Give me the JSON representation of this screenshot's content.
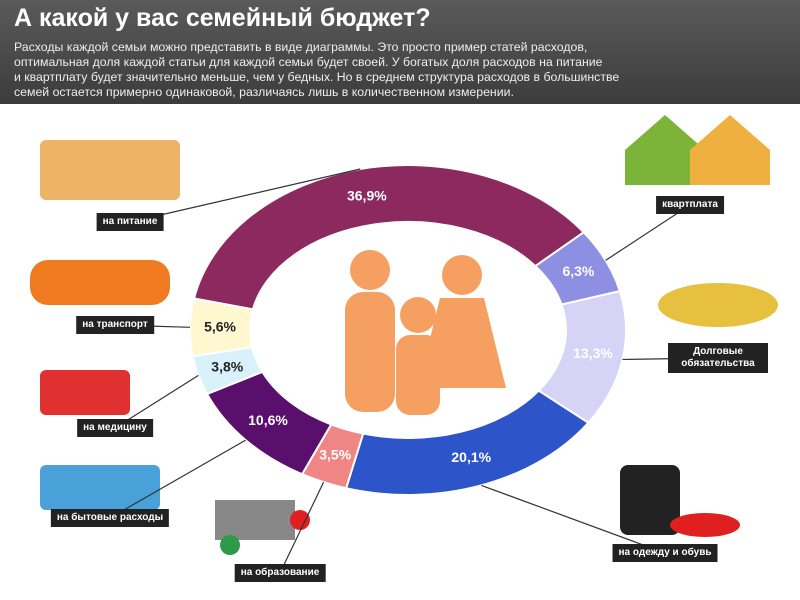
{
  "header": {
    "title": "А какой у вас семейный бюджет?",
    "description": [
      "Расходы каждой семьи можно представить в виде диаграммы. Это просто пример статей расходов,",
      "оптимальная доля каждой статьи для каждой семьи будет своей. У богатых доля расходов на питание",
      "и квартплату будет значительно меньше, чем у бедных. Но в среднем структура расходов в большинстве",
      "семей остается примерно одинаковой, различаясь лишь в количественном измерении."
    ]
  },
  "chart_data": {
    "type": "donut",
    "categories": [
      "на питание",
      "квартплата",
      "Долговые обязательства",
      "на одежду и обувь",
      "на образование",
      "на бытовые расходы",
      "на медицину",
      "на транспорт"
    ],
    "values": [
      36.9,
      6.3,
      13.3,
      20.1,
      3.5,
      10.6,
      3.8,
      5.6
    ],
    "value_labels": [
      "36,9%",
      "6,3%",
      "13,3%",
      "20,1%",
      "3,5%",
      "10,6%",
      "3,8%",
      "5,6%"
    ],
    "colors": [
      "#8c2a60",
      "#8d8fe2",
      "#d6d3f7",
      "#2d55c9",
      "#ef8585",
      "#5b0f6c",
      "#d9f1fa",
      "#fff7cf"
    ]
  }
}
